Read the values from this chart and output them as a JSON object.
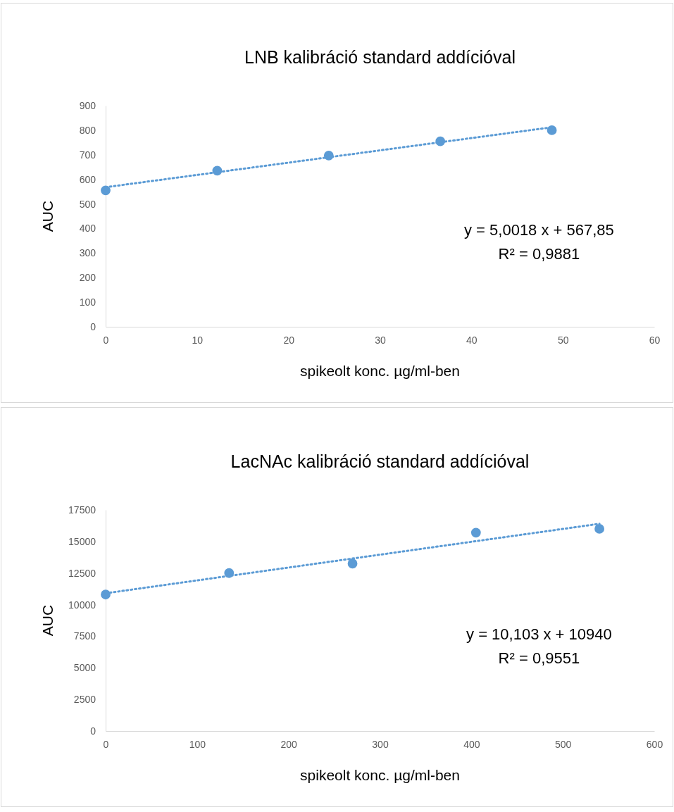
{
  "chart_data": [
    {
      "type": "scatter",
      "title": "LNB kalibráció standard addícióval",
      "xlabel": "spikeolt konc. µg/ml-ben",
      "ylabel": "AUC",
      "xlim": [
        0,
        60
      ],
      "xticks": [
        0,
        10,
        20,
        30,
        40,
        50,
        60
      ],
      "ylim": [
        0,
        900
      ],
      "yticks": [
        0,
        100,
        200,
        300,
        400,
        500,
        600,
        700,
        800,
        900
      ],
      "grid": false,
      "series": [
        {
          "color": "#5b9bd5",
          "marker": "circle",
          "x": [
            0,
            12.2,
            24.4,
            36.6,
            48.8
          ],
          "values": [
            555,
            635,
            697,
            755,
            800
          ]
        },
        {
          "type": "line",
          "color": "#5b9bd5",
          "line_style": "dotted",
          "marker": "none",
          "x": [
            0,
            48.8
          ],
          "values": [
            568,
            812
          ]
        }
      ],
      "annotations": [
        "y = 5,0018 x + 567,85",
        "R² = 0,9881"
      ]
    },
    {
      "type": "scatter",
      "title": "LacNAc kalibráció standard addícióval",
      "xlabel": "spikeolt konc. µg/ml-ben",
      "ylabel": "AUC",
      "xlim": [
        0,
        600
      ],
      "xticks": [
        0,
        100,
        200,
        300,
        400,
        500,
        600
      ],
      "ylim": [
        0,
        17500
      ],
      "yticks": [
        0,
        2500,
        5000,
        7500,
        10000,
        12500,
        15000,
        17500
      ],
      "grid": false,
      "series": [
        {
          "color": "#5b9bd5",
          "marker": "circle",
          "x": [
            0,
            135,
            270,
            405,
            540
          ],
          "values": [
            10800,
            12500,
            13250,
            15700,
            16000
          ]
        },
        {
          "type": "line",
          "color": "#5b9bd5",
          "line_style": "dotted",
          "marker": "none",
          "x": [
            0,
            540
          ],
          "values": [
            10900,
            16400
          ]
        }
      ],
      "annotations": [
        "y = 10,103 x + 10940",
        "R² = 0,9551"
      ]
    }
  ]
}
